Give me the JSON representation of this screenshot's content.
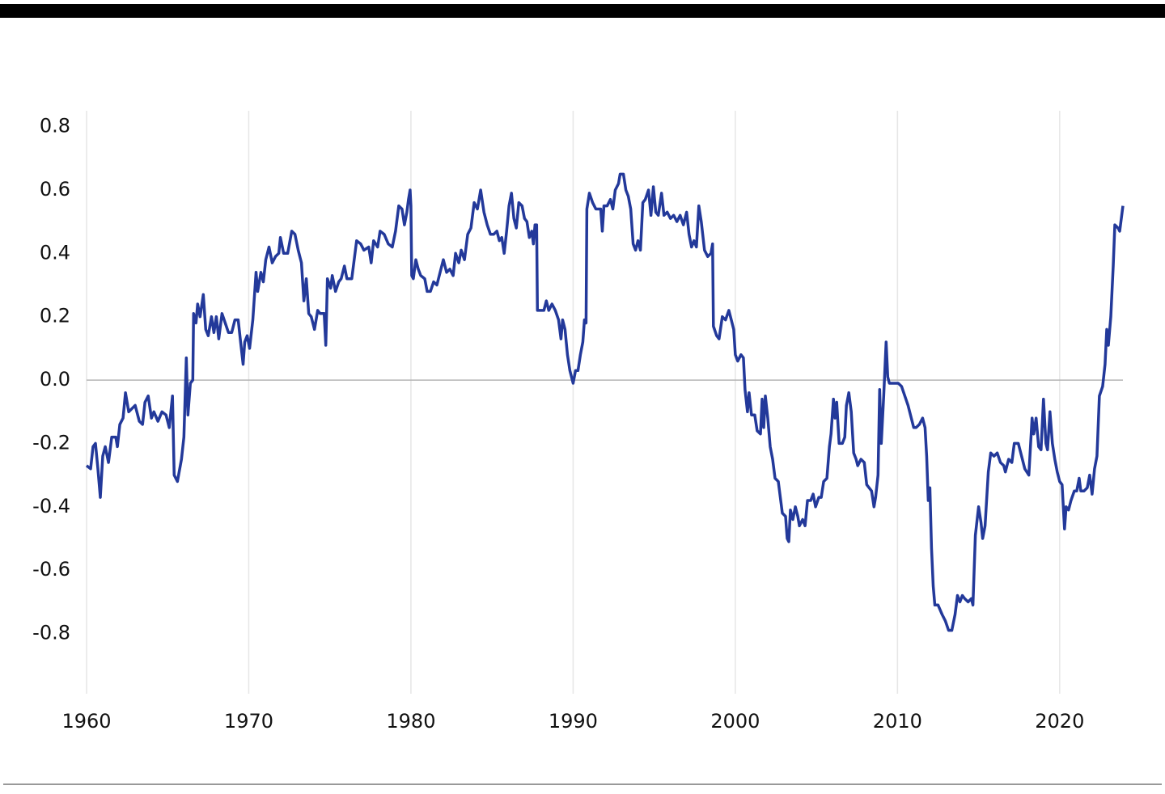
{
  "chart_data": {
    "type": "line",
    "color": "#23399a",
    "grid": "x",
    "xlim": [
      1960,
      2023.9
    ],
    "xticks": [
      1960,
      1970,
      1980,
      1990,
      2000,
      2010,
      2020
    ],
    "ylim": [
      -0.99,
      0.85
    ],
    "yticks": [
      0.8,
      0.6,
      0.4,
      0.2,
      {
        "value": 0,
        "label": "0.0"
      },
      -0.2,
      -0.4,
      -0.6,
      -0.8
    ],
    "x": [
      1960.0,
      1960.25,
      1960.4,
      1960.55,
      1960.7,
      1960.85,
      1961.0,
      1961.15,
      1961.35,
      1961.55,
      1961.8,
      1961.9,
      1962.05,
      1962.25,
      1962.4,
      1962.6,
      1962.8,
      1963.0,
      1963.25,
      1963.45,
      1963.6,
      1963.8,
      1964.0,
      1964.15,
      1964.4,
      1964.65,
      1964.9,
      1965.1,
      1965.3,
      1965.4,
      1965.6,
      1965.85,
      1966.0,
      1966.15,
      1966.25,
      1966.4,
      1966.55,
      1966.6,
      1966.75,
      1966.85,
      1967.0,
      1967.2,
      1967.35,
      1967.5,
      1967.7,
      1967.85,
      1968.0,
      1968.15,
      1968.35,
      1968.55,
      1968.75,
      1968.95,
      1969.15,
      1969.35,
      1969.5,
      1969.65,
      1969.75,
      1969.9,
      1970.05,
      1970.25,
      1970.45,
      1970.55,
      1970.75,
      1970.9,
      1971.05,
      1971.25,
      1971.45,
      1971.65,
      1971.85,
      1971.95,
      1972.15,
      1972.4,
      1972.65,
      1972.85,
      1973.05,
      1973.25,
      1973.4,
      1973.55,
      1973.7,
      1973.85,
      1974.05,
      1974.25,
      1974.4,
      1974.65,
      1974.75,
      1974.85,
      1975.05,
      1975.15,
      1975.35,
      1975.55,
      1975.7,
      1975.9,
      1976.05,
      1976.35,
      1976.65,
      1976.9,
      1977.1,
      1977.4,
      1977.55,
      1977.7,
      1977.95,
      1978.1,
      1978.35,
      1978.6,
      1978.85,
      1979.05,
      1979.25,
      1979.45,
      1979.6,
      1979.75,
      1979.85,
      1979.95,
      1980.0,
      1980.05,
      1980.15,
      1980.3,
      1980.45,
      1980.6,
      1980.85,
      1981.0,
      1981.2,
      1981.4,
      1981.6,
      1981.8,
      1982.0,
      1982.2,
      1982.4,
      1982.6,
      1982.75,
      1982.95,
      1983.1,
      1983.3,
      1983.5,
      1983.7,
      1983.9,
      1984.1,
      1984.3,
      1984.5,
      1984.7,
      1984.9,
      1985.1,
      1985.3,
      1985.45,
      1985.6,
      1985.75,
      1985.9,
      1986.05,
      1986.2,
      1986.35,
      1986.5,
      1986.65,
      1986.85,
      1987.0,
      1987.15,
      1987.3,
      1987.45,
      1987.55,
      1987.65,
      1987.75,
      1987.8,
      1988.0,
      1988.2,
      1988.35,
      1988.5,
      1988.7,
      1988.9,
      1989.1,
      1989.25,
      1989.35,
      1989.5,
      1989.65,
      1989.8,
      1990.0,
      1990.15,
      1990.3,
      1990.45,
      1990.6,
      1990.7,
      1990.8,
      1990.85,
      1991.0,
      1991.2,
      1991.4,
      1991.7,
      1991.8,
      1991.9,
      1992.1,
      1992.3,
      1992.45,
      1992.6,
      1992.8,
      1992.9,
      1993.1,
      1993.25,
      1993.4,
      1993.55,
      1993.7,
      1993.85,
      1994.0,
      1994.15,
      1994.3,
      1994.45,
      1994.65,
      1994.8,
      1994.95,
      1995.1,
      1995.25,
      1995.45,
      1995.6,
      1995.8,
      1996.0,
      1996.2,
      1996.4,
      1996.6,
      1996.8,
      1997.0,
      1997.15,
      1997.3,
      1997.45,
      1997.6,
      1997.75,
      1997.9,
      1998.1,
      1998.3,
      1998.5,
      1998.6,
      1998.65,
      1998.85,
      1999.0,
      1999.2,
      1999.4,
      1999.6,
      1999.75,
      1999.9,
      2000.0,
      2000.15,
      2000.35,
      2000.5,
      2000.6,
      2000.75,
      2000.85,
      2001.0,
      2001.2,
      2001.35,
      2001.55,
      2001.65,
      2001.75,
      2001.85,
      2002.0,
      2002.15,
      2002.3,
      2002.45,
      2002.65,
      2002.75,
      2002.9,
      2003.1,
      2003.2,
      2003.3,
      2003.4,
      2003.55,
      2003.7,
      2003.85,
      2003.95,
      2004.15,
      2004.3,
      2004.45,
      2004.65,
      2004.8,
      2004.95,
      2005.15,
      2005.3,
      2005.45,
      2005.65,
      2005.8,
      2005.9,
      2006.05,
      2006.15,
      2006.25,
      2006.4,
      2006.6,
      2006.75,
      2006.85,
      2007.0,
      2007.15,
      2007.3,
      2007.45,
      2007.55,
      2007.75,
      2007.95,
      2008.1,
      2008.25,
      2008.4,
      2008.55,
      2008.65,
      2008.8,
      2008.9,
      2009.0,
      2009.15,
      2009.3,
      2009.4,
      2009.5,
      2009.75,
      2010.05,
      2010.25,
      2010.45,
      2010.65,
      2010.85,
      2011.0,
      2011.15,
      2011.35,
      2011.55,
      2011.7,
      2011.8,
      2011.9,
      2012.0,
      2012.1,
      2012.2,
      2012.3,
      2012.5,
      2012.75,
      2012.95,
      2013.15,
      2013.35,
      2013.55,
      2013.7,
      2013.85,
      2014.0,
      2014.15,
      2014.35,
      2014.55,
      2014.65,
      2014.8,
      2015.0,
      2015.15,
      2015.25,
      2015.4,
      2015.6,
      2015.75,
      2015.95,
      2016.15,
      2016.35,
      2016.55,
      2016.65,
      2016.85,
      2017.05,
      2017.2,
      2017.45,
      2017.65,
      2017.85,
      2018.1,
      2018.3,
      2018.4,
      2018.55,
      2018.7,
      2018.85,
      2019.0,
      2019.15,
      2019.25,
      2019.4,
      2019.55,
      2019.7,
      2019.85,
      2020.0,
      2020.15,
      2020.3,
      2020.4,
      2020.55,
      2020.7,
      2020.9,
      2021.05,
      2021.2,
      2021.3,
      2021.5,
      2021.7,
      2021.85,
      2022.0,
      2022.15,
      2022.3,
      2022.45,
      2022.65,
      2022.8,
      2022.9,
      2023.0,
      2023.15,
      2023.3,
      2023.4,
      2023.6,
      2023.7,
      2023.9
    ],
    "values": [
      -0.27,
      -0.28,
      -0.21,
      -0.2,
      -0.28,
      -0.37,
      -0.24,
      -0.21,
      -0.26,
      -0.18,
      -0.18,
      -0.21,
      -0.14,
      -0.12,
      -0.04,
      -0.1,
      -0.09,
      -0.08,
      -0.13,
      -0.14,
      -0.07,
      -0.05,
      -0.12,
      -0.1,
      -0.13,
      -0.1,
      -0.11,
      -0.15,
      -0.05,
      -0.3,
      -0.32,
      -0.25,
      -0.18,
      0.07,
      -0.11,
      -0.01,
      0.0,
      0.21,
      0.18,
      0.24,
      0.2,
      0.27,
      0.16,
      0.14,
      0.2,
      0.15,
      0.2,
      0.13,
      0.21,
      0.18,
      0.15,
      0.15,
      0.19,
      0.19,
      0.12,
      0.05,
      0.12,
      0.14,
      0.1,
      0.19,
      0.34,
      0.28,
      0.34,
      0.31,
      0.38,
      0.42,
      0.37,
      0.39,
      0.4,
      0.45,
      0.4,
      0.4,
      0.47,
      0.46,
      0.41,
      0.37,
      0.25,
      0.32,
      0.21,
      0.2,
      0.16,
      0.22,
      0.21,
      0.21,
      0.11,
      0.32,
      0.29,
      0.33,
      0.28,
      0.31,
      0.32,
      0.36,
      0.32,
      0.32,
      0.44,
      0.43,
      0.41,
      0.42,
      0.37,
      0.44,
      0.42,
      0.47,
      0.46,
      0.43,
      0.42,
      0.47,
      0.55,
      0.54,
      0.49,
      0.53,
      0.57,
      0.6,
      0.55,
      0.33,
      0.32,
      0.38,
      0.35,
      0.33,
      0.32,
      0.28,
      0.28,
      0.31,
      0.3,
      0.34,
      0.38,
      0.34,
      0.35,
      0.33,
      0.4,
      0.37,
      0.41,
      0.38,
      0.46,
      0.48,
      0.56,
      0.54,
      0.6,
      0.53,
      0.49,
      0.46,
      0.46,
      0.47,
      0.44,
      0.45,
      0.4,
      0.47,
      0.55,
      0.59,
      0.51,
      0.48,
      0.56,
      0.55,
      0.51,
      0.5,
      0.45,
      0.47,
      0.43,
      0.49,
      0.49,
      0.22,
      0.22,
      0.22,
      0.25,
      0.22,
      0.24,
      0.22,
      0.19,
      0.13,
      0.19,
      0.16,
      0.08,
      0.03,
      -0.01,
      0.03,
      0.03,
      0.08,
      0.12,
      0.19,
      0.18,
      0.54,
      0.59,
      0.56,
      0.54,
      0.54,
      0.47,
      0.55,
      0.55,
      0.57,
      0.54,
      0.6,
      0.62,
      0.65,
      0.65,
      0.6,
      0.58,
      0.54,
      0.43,
      0.41,
      0.44,
      0.41,
      0.56,
      0.57,
      0.6,
      0.52,
      0.61,
      0.53,
      0.52,
      0.59,
      0.52,
      0.53,
      0.51,
      0.52,
      0.5,
      0.52,
      0.49,
      0.53,
      0.46,
      0.42,
      0.44,
      0.42,
      0.55,
      0.5,
      0.41,
      0.39,
      0.4,
      0.43,
      0.17,
      0.14,
      0.13,
      0.2,
      0.19,
      0.22,
      0.19,
      0.16,
      0.08,
      0.06,
      0.08,
      0.07,
      -0.03,
      -0.1,
      -0.04,
      -0.11,
      -0.11,
      -0.16,
      -0.17,
      -0.06,
      -0.15,
      -0.05,
      -0.12,
      -0.21,
      -0.25,
      -0.31,
      -0.32,
      -0.36,
      -0.42,
      -0.43,
      -0.5,
      -0.51,
      -0.41,
      -0.44,
      -0.4,
      -0.43,
      -0.46,
      -0.44,
      -0.46,
      -0.38,
      -0.38,
      -0.36,
      -0.4,
      -0.37,
      -0.37,
      -0.32,
      -0.31,
      -0.21,
      -0.17,
      -0.06,
      -0.12,
      -0.07,
      -0.2,
      -0.2,
      -0.18,
      -0.08,
      -0.04,
      -0.1,
      -0.23,
      -0.25,
      -0.27,
      -0.25,
      -0.26,
      -0.33,
      -0.34,
      -0.35,
      -0.4,
      -0.37,
      -0.3,
      -0.03,
      -0.2,
      -0.05,
      0.12,
      0.01,
      -0.01,
      -0.01,
      -0.01,
      -0.02,
      -0.05,
      -0.08,
      -0.12,
      -0.15,
      -0.15,
      -0.14,
      -0.12,
      -0.15,
      -0.24,
      -0.38,
      -0.34,
      -0.53,
      -0.65,
      -0.71,
      -0.71,
      -0.74,
      -0.76,
      -0.79,
      -0.79,
      -0.74,
      -0.68,
      -0.7,
      -0.68,
      -0.69,
      -0.7,
      -0.69,
      -0.71,
      -0.49,
      -0.4,
      -0.45,
      -0.5,
      -0.46,
      -0.29,
      -0.23,
      -0.24,
      -0.23,
      -0.26,
      -0.27,
      -0.29,
      -0.25,
      -0.26,
      -0.2,
      -0.2,
      -0.24,
      -0.28,
      -0.3,
      -0.12,
      -0.17,
      -0.12,
      -0.21,
      -0.22,
      -0.06,
      -0.2,
      -0.22,
      -0.1,
      -0.2,
      -0.25,
      -0.29,
      -0.32,
      -0.33,
      -0.47,
      -0.4,
      -0.41,
      -0.38,
      -0.35,
      -0.35,
      -0.31,
      -0.35,
      -0.35,
      -0.34,
      -0.3,
      -0.36,
      -0.28,
      -0.24,
      -0.05,
      -0.02,
      0.05,
      0.16,
      0.11,
      0.2,
      0.36,
      0.49,
      0.48,
      0.47,
      0.55
    ]
  }
}
